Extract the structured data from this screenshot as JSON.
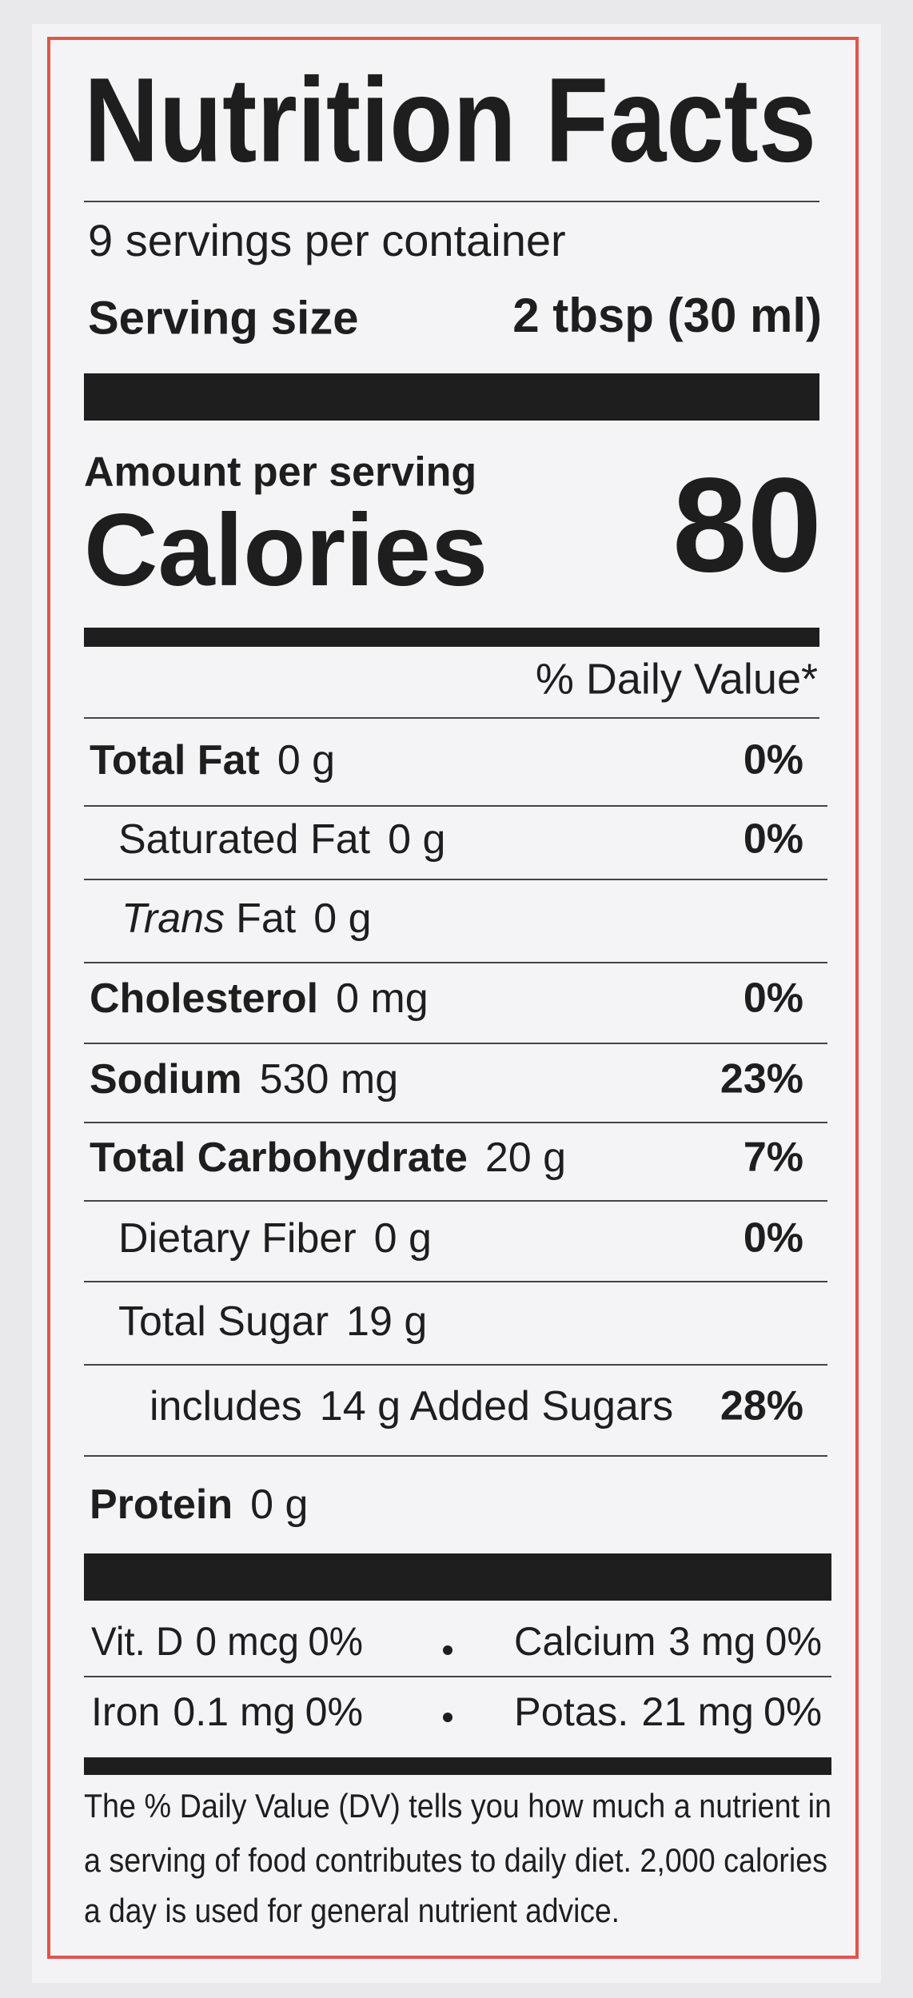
{
  "header": {
    "title": "Nutrition Facts",
    "servings": "9 servings per container",
    "serving_size_label": "Serving size",
    "serving_size_value": "2 tbsp (30 ml)"
  },
  "calories": {
    "amount_label": "Amount per serving",
    "label": "Calories",
    "value": "80"
  },
  "dv_header": "% Daily Value*",
  "nutrients": [
    {
      "name": "Total Fat",
      "amount": "0 g",
      "dv": "0%"
    },
    {
      "name": "Saturated Fat",
      "amount": "0 g",
      "dv": "0%"
    },
    {
      "name_italic": "Trans",
      "name": "Fat",
      "amount": "0 g"
    },
    {
      "name": "Cholesterol",
      "amount": "0 mg",
      "dv": "0%"
    },
    {
      "name": "Sodium",
      "amount": "530 mg",
      "dv": "23%"
    },
    {
      "name": "Total Carbohydrate",
      "amount": "20 g",
      "dv": "7%"
    },
    {
      "name": "Dietary Fiber",
      "amount": "0 g",
      "dv": "0%"
    },
    {
      "name": "Total Sugar",
      "amount": "19 g"
    },
    {
      "name": "includes",
      "amount": "14 g Added Sugars",
      "dv": "28%"
    },
    {
      "name": "Protein",
      "amount": "0 g"
    }
  ],
  "vitamins": [
    {
      "name": "Vit. D",
      "amount": "0 mcg",
      "dv": "0%"
    },
    {
      "name": "Calcium",
      "amount": "3 mg",
      "dv": "0%"
    },
    {
      "name": "Iron",
      "amount": "0.1 mg",
      "dv": "0%"
    },
    {
      "name": "Potas.",
      "amount": "21 mg",
      "dv": "0%"
    }
  ],
  "footnote": [
    "The % Daily Value (DV) tells you how much a nutrient in",
    "a serving of food contributes to daily diet. 2,000 calories",
    "a day is used for general nutrient advice."
  ]
}
